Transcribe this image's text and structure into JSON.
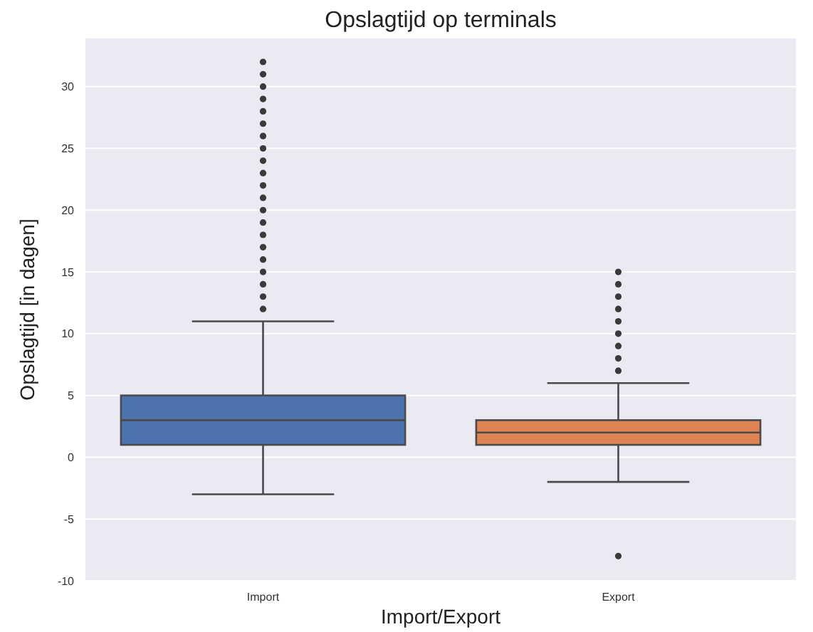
{
  "chart_data": {
    "type": "box",
    "title": "Opslagtijd op terminals",
    "xlabel": "Import/Export",
    "ylabel": "Opslagtijd [in dagen]",
    "categories": [
      "Import",
      "Export"
    ],
    "colors": [
      "#4c72b0",
      "#dd8452"
    ],
    "boxes": [
      {
        "low": -3,
        "q1": 1,
        "median": 3,
        "q3": 5,
        "high": 11,
        "outliers": [
          12,
          13,
          14,
          15,
          16,
          17,
          18,
          19,
          20,
          21,
          22,
          23,
          24,
          25,
          26,
          27,
          28,
          29,
          30,
          31,
          32
        ]
      },
      {
        "low": -2,
        "q1": 1,
        "median": 2,
        "q3": 3,
        "high": 6,
        "outliers": [
          7,
          8,
          9,
          10,
          11,
          12,
          13,
          14,
          15,
          -8
        ]
      }
    ],
    "ylim": [
      -10,
      33.9
    ],
    "yticks": [
      -10,
      -5,
      0,
      5,
      10,
      15,
      20,
      25,
      30
    ],
    "grid": "y"
  }
}
